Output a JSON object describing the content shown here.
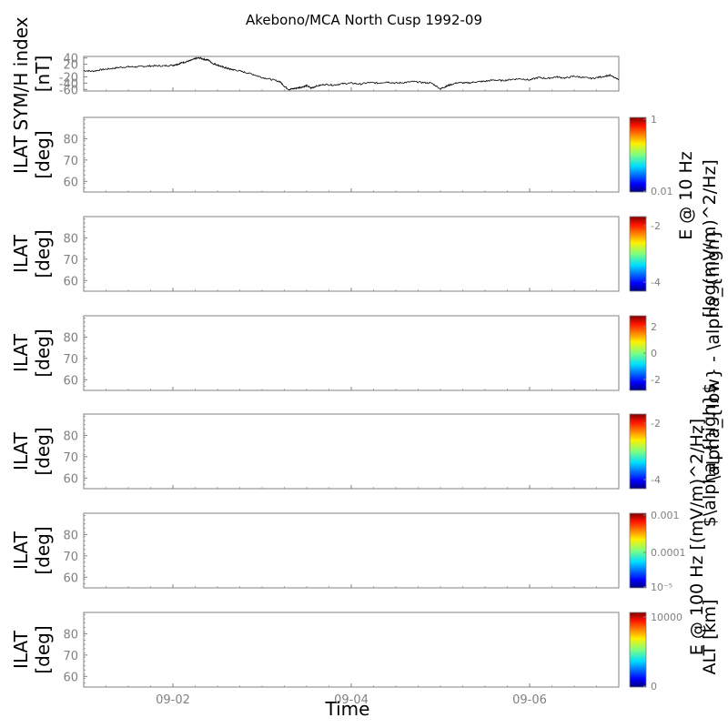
{
  "chart_data": {
    "type": "line",
    "title": "Akebono/MCA North Cusp 1992-09",
    "xlabel": "Time",
    "x_tick_labels": [
      "09-02",
      "09-04",
      "09-06"
    ],
    "x_tick_days": [
      2,
      4,
      6
    ],
    "xlim_days": [
      1.0,
      7.0
    ],
    "panels": [
      {
        "ylabel_lines": [
          "SYM/H index",
          "[nT]"
        ],
        "y_ticks": [
          40,
          20,
          -20,
          -40,
          -60
        ],
        "y_tick_labels": [
          "40",
          "20",
          "-20",
          "-40",
          "-60"
        ],
        "ylim": [
          -65,
          45
        ],
        "series": [
          {
            "x": [
              1.0,
              1.1,
              1.2,
              1.3,
              1.4,
              1.5,
              1.6,
              1.7,
              1.8,
              1.9,
              2.0,
              2.05,
              2.1,
              2.15,
              2.2,
              2.25,
              2.3,
              2.35,
              2.4,
              2.45,
              2.5,
              2.55,
              2.6,
              2.65,
              2.7,
              2.8,
              2.9,
              3.0,
              3.1,
              3.2,
              3.25,
              3.3,
              3.35,
              3.4,
              3.45,
              3.5,
              3.55,
              3.6,
              3.7,
              3.8,
              3.9,
              4.0,
              4.1,
              4.2,
              4.3,
              4.4,
              4.5,
              4.6,
              4.7,
              4.8,
              4.9,
              5.0,
              5.05,
              5.1,
              5.2,
              5.3,
              5.4,
              5.5,
              5.6,
              5.7,
              5.8,
              5.9,
              6.0,
              6.1,
              6.2,
              6.3,
              6.4,
              6.5,
              6.6,
              6.7,
              6.8,
              6.9,
              7.0
            ],
            "y": [
              0,
              -2,
              3,
              6,
              10,
              12,
              12,
              14,
              15,
              15,
              17,
              20,
              25,
              28,
              32,
              38,
              40,
              36,
              33,
              22,
              18,
              12,
              8,
              4,
              2,
              -5,
              -12,
              -22,
              -28,
              -35,
              -50,
              -60,
              -58,
              -55,
              -52,
              -48,
              -56,
              -50,
              -44,
              -46,
              -42,
              -40,
              -43,
              -38,
              -40,
              -36,
              -40,
              -38,
              -35,
              -38,
              -40,
              -58,
              -52,
              -46,
              -38,
              -40,
              -36,
              -34,
              -30,
              -32,
              -28,
              -26,
              -30,
              -22,
              -25,
              -20,
              -24,
              -18,
              -22,
              -25,
              -20,
              -15,
              -30
            ]
          }
        ]
      },
      {
        "ylabel_lines": [
          "ILAT",
          "[deg]"
        ],
        "y_ticks": [
          80,
          70,
          60
        ],
        "ylim": [
          55,
          90
        ],
        "colorbar": {
          "tick_labels": [
            "1",
            "0.01"
          ],
          "label": "E @ 10 Hz"
        }
      },
      {
        "ylabel_lines": [
          "ILAT",
          "[deg]"
        ],
        "y_ticks": [
          80,
          70,
          60
        ],
        "ylim": [
          55,
          90
        ],
        "colorbar": {
          "tick_labels": [
            "-2",
            "-4"
          ],
          "label": "[log(mV/m)^2/Hz]"
        }
      },
      {
        "ylabel_lines": [
          "ILAT",
          "[deg]"
        ],
        "y_ticks": [
          80,
          70,
          60
        ],
        "ylim": [
          55,
          90
        ],
        "colorbar": {
          "tick_labels": [
            "2",
            "0",
            "-2"
          ],
          "label": "\\alpha_{low} - \\alpha_{high}"
        }
      },
      {
        "ylabel_lines": [
          "ILAT",
          "[deg]"
        ],
        "y_ticks": [
          80,
          70,
          60
        ],
        "ylim": [
          55,
          90
        ],
        "colorbar": {
          "tick_labels": [
            "-2",
            "-4"
          ],
          "label": "$\\alpha_{high}$"
        }
      },
      {
        "ylabel_lines": [
          "ILAT",
          "[deg]"
        ],
        "y_ticks": [
          80,
          70,
          60
        ],
        "ylim": [
          55,
          90
        ],
        "colorbar": {
          "tick_labels": [
            "0.001",
            "0.0001",
            "10⁻⁵"
          ],
          "label": "E @ 100 Hz [(mV/m)^2/Hz]"
        }
      },
      {
        "ylabel_lines": [
          "ILAT",
          "[deg]"
        ],
        "y_ticks": [
          80,
          70,
          60
        ],
        "ylim": [
          55,
          90
        ],
        "colorbar": {
          "tick_labels": [
            "10000",
            "0"
          ],
          "label": "ALT [km]"
        }
      }
    ]
  }
}
